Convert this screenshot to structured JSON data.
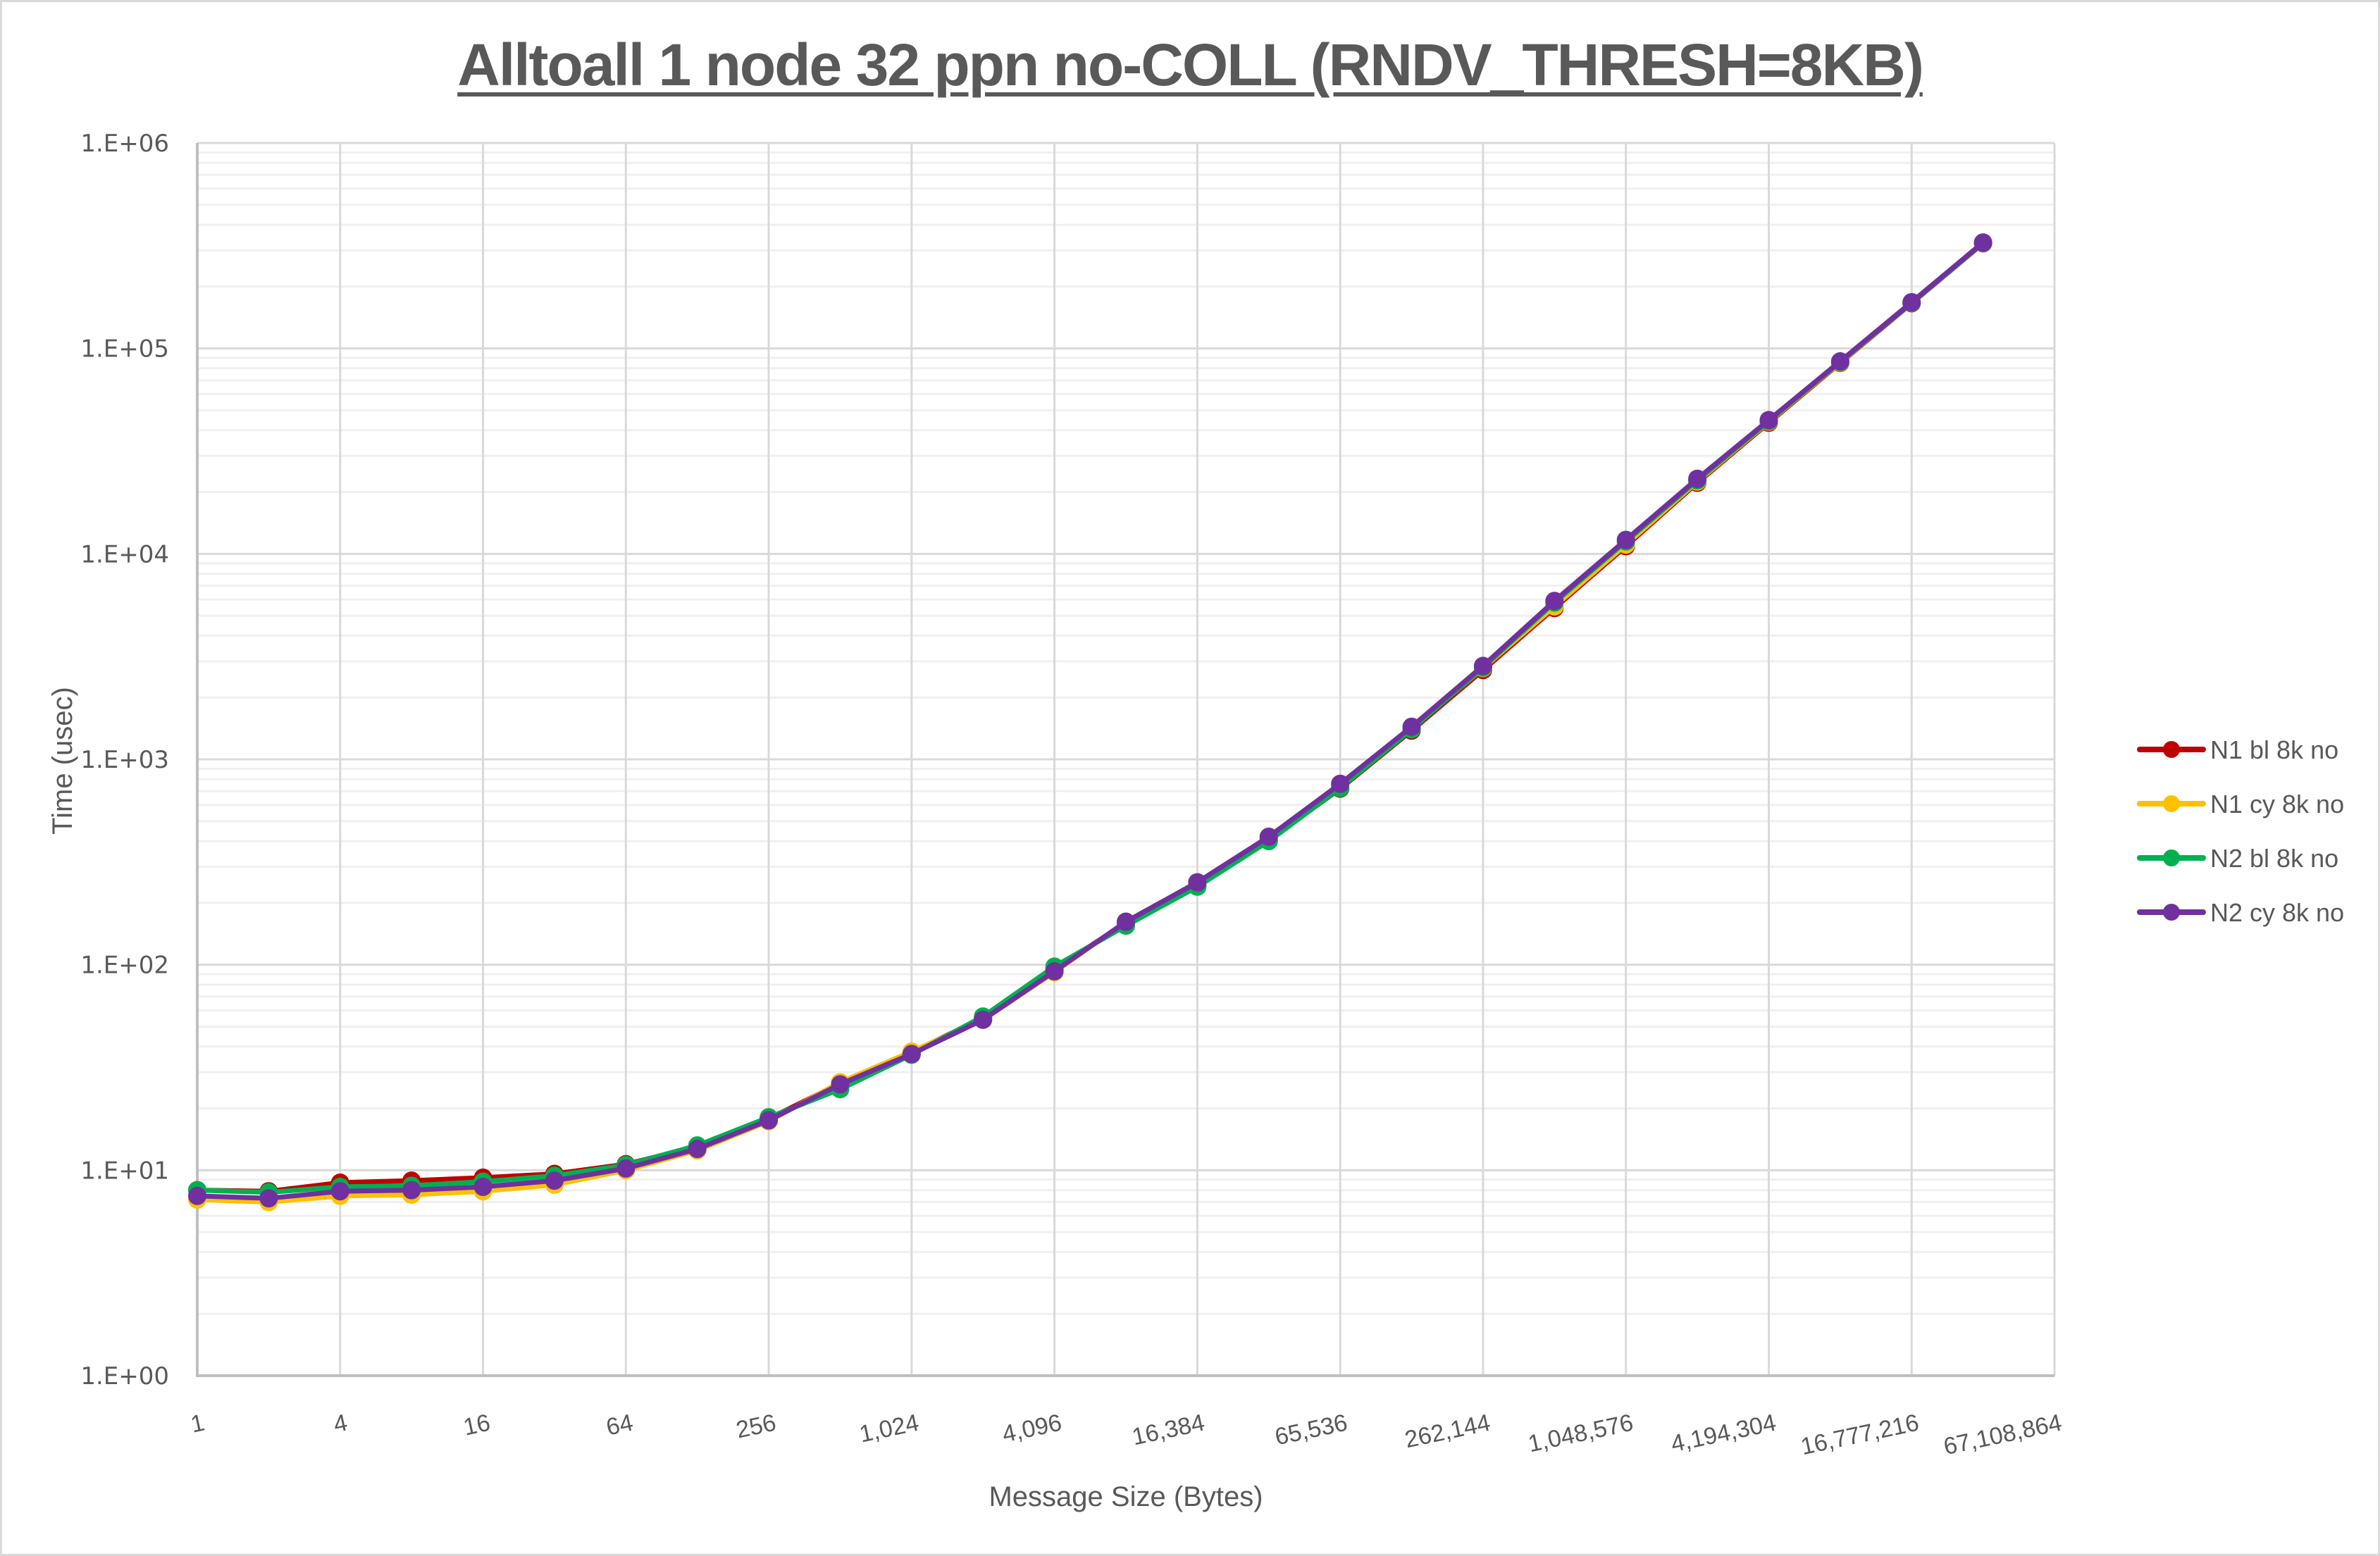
{
  "chart_data": {
    "type": "line",
    "title": "Alltoall 1 node 32 ppn no-COLL (RNDV_THRESH=8KB)",
    "xlabel": "Message Size (Bytes)",
    "ylabel": "Time (usec)",
    "xscale": "log2",
    "yscale": "log10",
    "ylim": [
      1,
      1000000
    ],
    "xlim": [
      1,
      67108864
    ],
    "grid": true,
    "legend_position": "right",
    "y_tick_labels": [
      "1.E+00",
      "1.E+01",
      "1.E+02",
      "1.E+03",
      "1.E+04",
      "1.E+05",
      "1.E+06"
    ],
    "x_tick_labels": [
      "1",
      "4",
      "16",
      "64",
      "256",
      "1,024",
      "4,096",
      "16,384",
      "65,536",
      "262,144",
      "1,048,576",
      "4,194,304",
      "16,777,216",
      "67,108,864"
    ],
    "x": [
      1,
      2,
      4,
      8,
      16,
      32,
      64,
      128,
      256,
      512,
      1024,
      2048,
      4096,
      8192,
      16384,
      32768,
      65536,
      131072,
      262144,
      524288,
      1048576,
      2097152,
      4194304,
      8388608,
      16777216,
      33554432
    ],
    "series": [
      {
        "name": "N1 bl 8k no",
        "color": "#c00000",
        "values": [
          8.0,
          7.9,
          8.7,
          8.9,
          9.2,
          9.6,
          10.7,
          13.0,
          17.8,
          26.5,
          37.5,
          55,
          95,
          160,
          245,
          405,
          720,
          1380,
          2720,
          5450,
          10900,
          22200,
          43500,
          85000,
          166000,
          325000
        ]
      },
      {
        "name": "N1 cy 8k no",
        "color": "#ffc000",
        "values": [
          7.2,
          7.0,
          7.5,
          7.6,
          7.9,
          8.5,
          10.0,
          12.5,
          17.3,
          26.8,
          37.8,
          54,
          92,
          162,
          252,
          415,
          735,
          1410,
          2780,
          5550,
          11100,
          22500,
          44000,
          85500,
          167000,
          326000
        ]
      },
      {
        "name": "N2 bl 8k no",
        "color": "#00b050",
        "values": [
          8.0,
          7.8,
          8.3,
          8.4,
          8.8,
          9.4,
          10.6,
          13.2,
          18.1,
          24.8,
          36.5,
          56,
          98,
          155,
          240,
          400,
          725,
          1400,
          2800,
          5800,
          11500,
          22800,
          44300,
          86000,
          167000,
          326000
        ]
      },
      {
        "name": "N2 cy 8k no",
        "color": "#7030a0",
        "values": [
          7.5,
          7.3,
          7.9,
          8.0,
          8.3,
          8.9,
          10.2,
          12.7,
          17.5,
          26.2,
          36.8,
          54,
          93,
          162,
          252,
          420,
          760,
          1440,
          2850,
          5900,
          11700,
          23200,
          44800,
          86500,
          168000,
          328000
        ]
      }
    ]
  },
  "legend": {
    "items": [
      {
        "label": "N1 bl 8k no",
        "color": "#c00000"
      },
      {
        "label": "N1 cy 8k no",
        "color": "#ffc000"
      },
      {
        "label": "N2 bl 8k no",
        "color": "#00b050"
      },
      {
        "label": "N2 cy 8k no",
        "color": "#7030a0"
      }
    ]
  }
}
